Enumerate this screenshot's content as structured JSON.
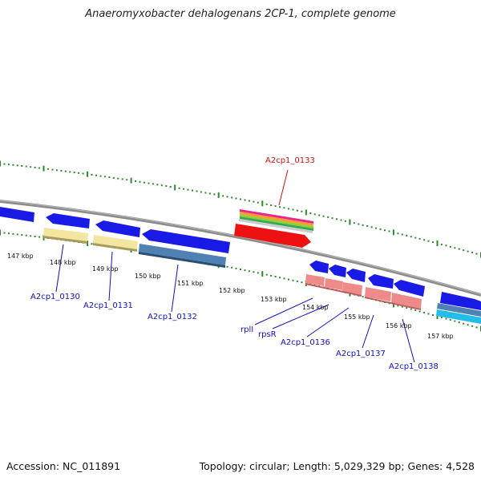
{
  "title": "Anaeromyxobacter dehalogenans 2CP-1, complete genome",
  "footer": {
    "accession": "Accession: NC_011891",
    "topology": "Topology: circular; Length: 5,029,329 bp; Genes: 4,528"
  },
  "colors": {
    "backbone": "#8c8c8c",
    "tick": "#2b8a2b",
    "label_blue": "#1010c8",
    "label_red": "#d01010",
    "gene_blue": "#1a1ae6",
    "cds_yellow": "#f2e6a0",
    "cds_steel": "#4f81b4",
    "cds_salmon": "#ef8a8a",
    "cds_red": "#ee1111",
    "cds_cyan": "#22bde8"
  },
  "axis_labels": [
    "147 kbp",
    "148 kbp",
    "149 kbp",
    "150 kbp",
    "151 kbp",
    "152 kbp",
    "153 kbp",
    "154 kbp",
    "155 kbp",
    "156 kbp",
    "157 kbp"
  ],
  "gene_labels": [
    {
      "id": "g130",
      "text": "A2cp1_0130",
      "color": "blue"
    },
    {
      "id": "g131",
      "text": "A2cp1_0131",
      "color": "blue"
    },
    {
      "id": "g132",
      "text": "A2cp1_0132",
      "color": "blue"
    },
    {
      "id": "g133",
      "text": "A2cp1_0133",
      "color": "red"
    },
    {
      "id": "rpll",
      "text": "rplI",
      "color": "blue"
    },
    {
      "id": "rpsr",
      "text": "rpsR",
      "color": "blue"
    },
    {
      "id": "g136",
      "text": "A2cp1_0136",
      "color": "blue"
    },
    {
      "id": "g137",
      "text": "A2cp1_0137",
      "color": "blue"
    },
    {
      "id": "g138",
      "text": "A2cp1_0138",
      "color": "blue"
    }
  ]
}
